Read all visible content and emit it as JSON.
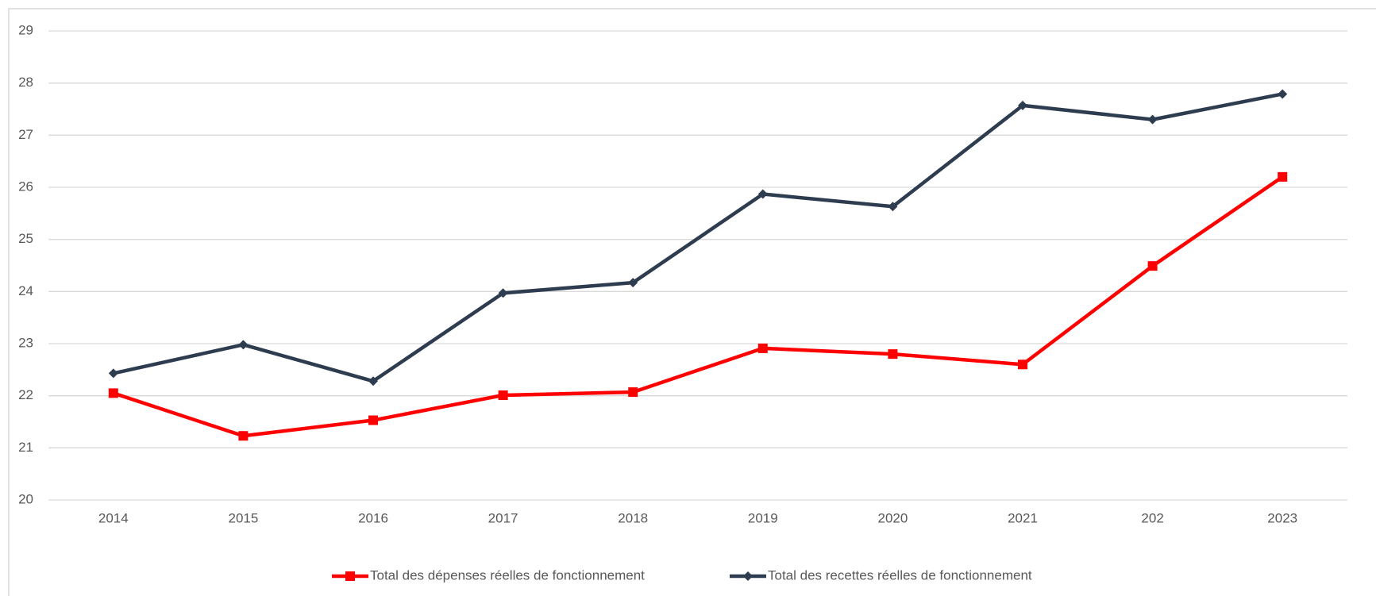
{
  "chart_data": {
    "type": "line",
    "categories": [
      "2014",
      "2015",
      "2016",
      "2017",
      "2018",
      "2019",
      "2020",
      "2021",
      "202",
      "2023"
    ],
    "series": [
      {
        "name": "Total des dépenses réelles de fonctionnement",
        "color": "#ff0000",
        "marker": "square",
        "values": [
          22.05,
          21.23,
          21.53,
          22.01,
          22.07,
          22.91,
          22.8,
          22.6,
          24.49,
          26.2
        ]
      },
      {
        "name": "Total des recettes réelles de fonctionnement",
        "color": "#2e3c50",
        "marker": "diamond",
        "values": [
          22.43,
          22.98,
          22.28,
          23.97,
          24.17,
          25.87,
          25.63,
          27.57,
          27.3,
          27.79
        ]
      }
    ],
    "ylim": [
      20,
      29
    ],
    "yticks": [
      20,
      21,
      22,
      23,
      24,
      25,
      26,
      27,
      28,
      29
    ],
    "grid": true,
    "legend": "bottom"
  }
}
